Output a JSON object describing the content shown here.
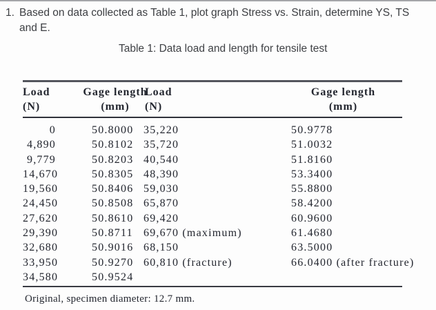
{
  "question": {
    "number": "1.",
    "line1": "Based on data collected as Table 1, plot graph Stress vs. Strain, determine YS, TS",
    "line2": "and E."
  },
  "table": {
    "title": "Table 1: Data load and length for tensile test",
    "headers": [
      {
        "line1": "Load",
        "line2": "(N)"
      },
      {
        "line1": "Gage length",
        "line2": "(mm)"
      },
      {
        "line1": "Load",
        "line2": "(N)"
      },
      {
        "line1": "Gage length",
        "line2": "(mm)"
      }
    ],
    "rows": [
      [
        "0",
        "50.8000",
        "35,220",
        "50.9778"
      ],
      [
        "4,890",
        "50.8102",
        "35,720",
        "51.0032"
      ],
      [
        "9,779",
        "50.8203",
        "40,540",
        "51.8160"
      ],
      [
        "14,670",
        "50.8305",
        "48,390",
        "53.3400"
      ],
      [
        "19,560",
        "50.8406",
        "59,030",
        "55.8800"
      ],
      [
        "24,450",
        "50.8508",
        "65,870",
        "58.4200"
      ],
      [
        "27,620",
        "50.8610",
        "69,420",
        "60.9600"
      ],
      [
        "29,390",
        "50.8711",
        "69,670 (maximum)",
        "61.4680"
      ],
      [
        "32,680",
        "50.9016",
        "68,150",
        "63.5000"
      ],
      [
        "33,950",
        "50.9270",
        "60,810 (fracture)",
        "66.0400 (after fracture)"
      ],
      [
        "34,580",
        "50.9524",
        "",
        ""
      ]
    ],
    "footnote": "Original, specimen diameter: 12.7 mm."
  }
}
